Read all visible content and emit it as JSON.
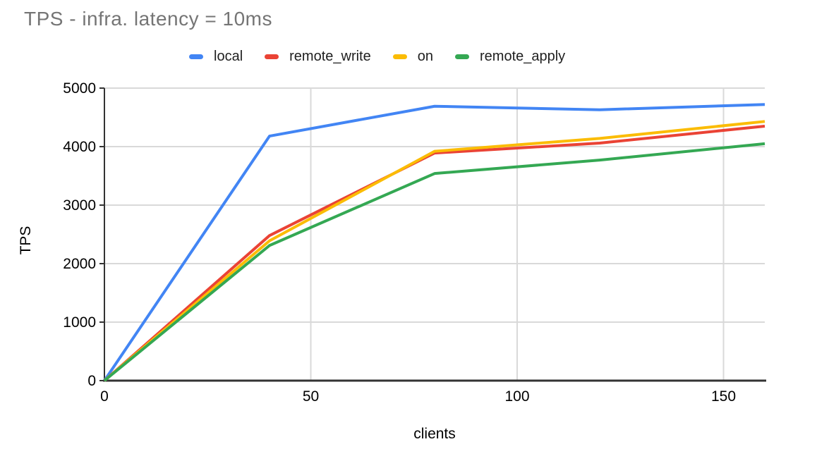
{
  "title": "TPS - infra. latency = 10ms",
  "colors": {
    "background": "#ffffff",
    "title_text": "#757575",
    "axis_text": "#000000",
    "legend_text": "#1f1f1f",
    "axis_line": "#333333",
    "gridline": "#d9d9d9"
  },
  "chart_data": {
    "type": "line",
    "title": "TPS - infra. latency = 10ms",
    "xlabel": "clients",
    "ylabel": "TPS",
    "x": [
      0,
      40,
      80,
      120,
      160
    ],
    "series": [
      {
        "name": "local",
        "color": "#4285f4",
        "values": [
          0,
          4180,
          4690,
          4630,
          4720
        ]
      },
      {
        "name": "remote_write",
        "color": "#ea4335",
        "values": [
          0,
          2480,
          3890,
          4060,
          4350
        ]
      },
      {
        "name": "on",
        "color": "#fbbc04",
        "values": [
          0,
          2390,
          3920,
          4140,
          4430
        ]
      },
      {
        "name": "remote_apply",
        "color": "#34a853",
        "values": [
          0,
          2310,
          3540,
          3770,
          4050
        ]
      }
    ],
    "xlim": [
      0,
      160
    ],
    "ylim": [
      0,
      5000
    ],
    "x_ticks": [
      0,
      50,
      100,
      150
    ],
    "y_ticks": [
      0,
      1000,
      2000,
      3000,
      4000,
      5000
    ],
    "grid": true,
    "legend_position": "top"
  }
}
